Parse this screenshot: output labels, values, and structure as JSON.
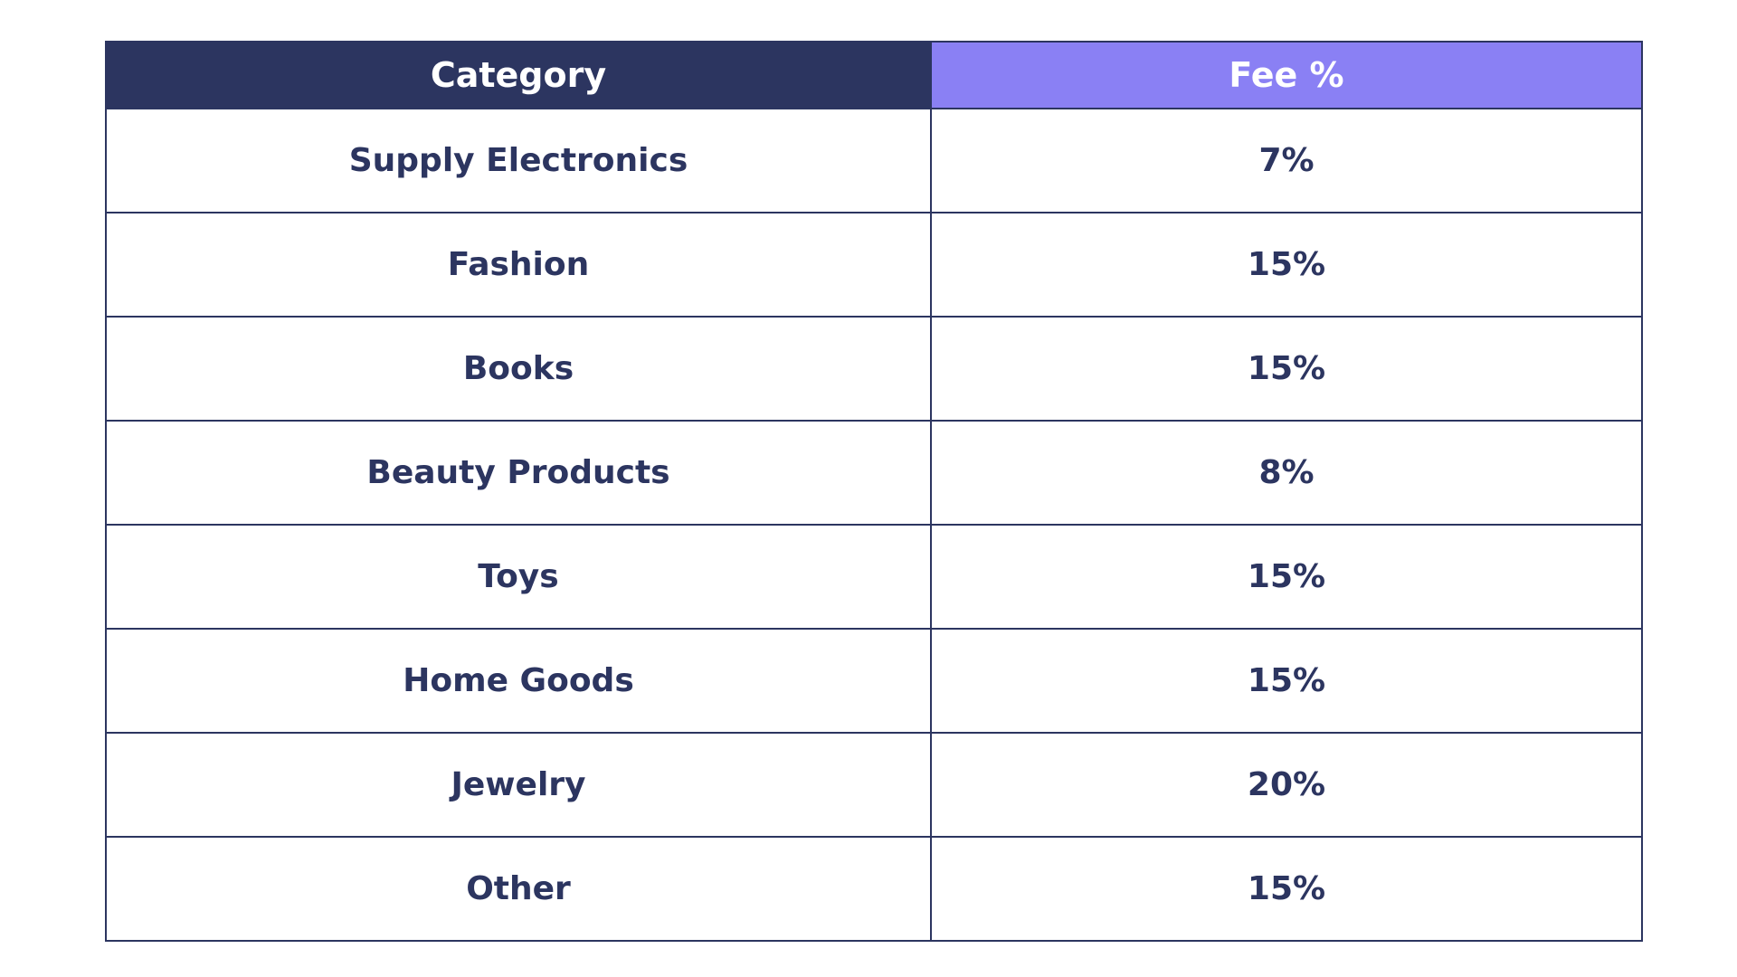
{
  "table": {
    "headers": {
      "category": "Category",
      "fee": "Fee %"
    },
    "rows": [
      {
        "category": "Supply Electronics",
        "fee": "7%"
      },
      {
        "category": "Fashion",
        "fee": "15%"
      },
      {
        "category": "Books",
        "fee": "15%"
      },
      {
        "category": "Beauty Products",
        "fee": "8%"
      },
      {
        "category": "Toys",
        "fee": "15%"
      },
      {
        "category": "Home Goods",
        "fee": "15%"
      },
      {
        "category": "Jewelry",
        "fee": "20%"
      },
      {
        "category": "Other",
        "fee": "15%"
      }
    ]
  },
  "colors": {
    "header_dark": "#2c3560",
    "header_accent": "#8a80f4",
    "text": "#2c3560",
    "border": "#2c3560",
    "background": "#ffffff"
  }
}
